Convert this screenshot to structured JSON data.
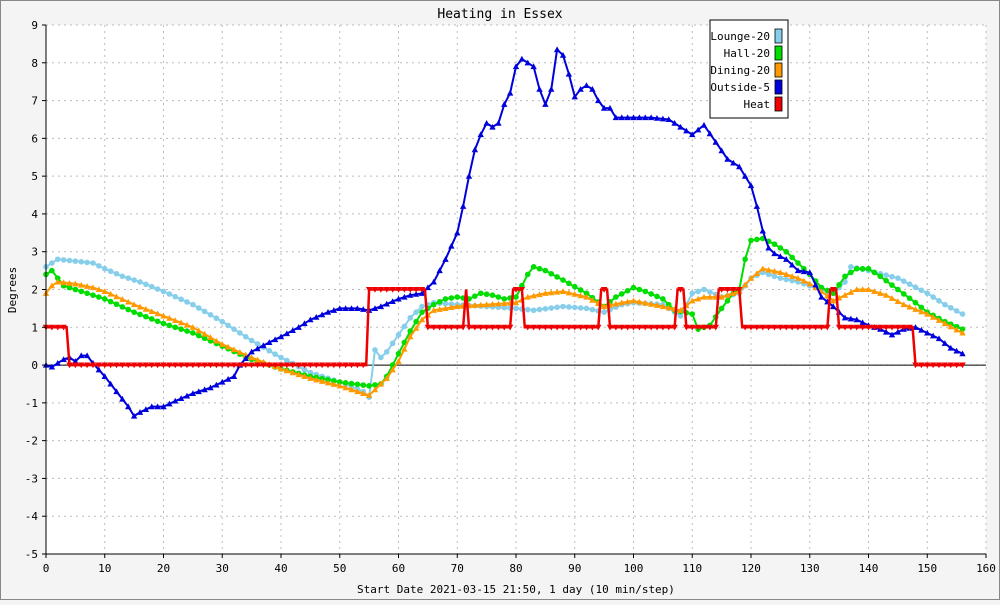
{
  "chart_data": {
    "type": "line",
    "title": "Heating in Essex",
    "xlabel": "Start Date 2021-03-15 21:50, 1 day (10 min/step)",
    "ylabel": "Degrees",
    "xlim": [
      0,
      160
    ],
    "ylim": [
      -5,
      9
    ],
    "x_ticks": [
      0,
      10,
      20,
      30,
      40,
      50,
      60,
      70,
      80,
      90,
      100,
      110,
      120,
      130,
      140,
      150,
      160
    ],
    "y_ticks": [
      -5,
      -4,
      -3,
      -2,
      -1,
      0,
      1,
      2,
      3,
      4,
      5,
      6,
      7,
      8,
      9
    ],
    "grid": true,
    "legend_position": "top-right",
    "series": [
      {
        "name": "Lounge-20",
        "color": "#87ceeb",
        "marker": "circle",
        "points": [
          [
            0,
            2.6
          ],
          [
            2,
            2.8
          ],
          [
            5,
            2.75
          ],
          [
            8,
            2.7
          ],
          [
            10,
            2.55
          ],
          [
            13,
            2.35
          ],
          [
            16,
            2.2
          ],
          [
            20,
            1.95
          ],
          [
            25,
            1.6
          ],
          [
            30,
            1.15
          ],
          [
            35,
            0.65
          ],
          [
            40,
            0.2
          ],
          [
            45,
            -0.2
          ],
          [
            50,
            -0.45
          ],
          [
            54,
            -0.7
          ],
          [
            55,
            -0.85
          ],
          [
            56,
            0.4
          ],
          [
            57,
            0.2
          ],
          [
            58,
            0.35
          ],
          [
            60,
            0.8
          ],
          [
            62,
            1.25
          ],
          [
            64,
            1.55
          ],
          [
            66,
            1.65
          ],
          [
            70,
            1.6
          ],
          [
            75,
            1.55
          ],
          [
            80,
            1.5
          ],
          [
            83,
            1.45
          ],
          [
            88,
            1.55
          ],
          [
            92,
            1.5
          ],
          [
            95,
            1.4
          ],
          [
            98,
            1.6
          ],
          [
            100,
            1.65
          ],
          [
            105,
            1.6
          ],
          [
            108,
            1.3
          ],
          [
            110,
            1.9
          ],
          [
            112,
            2.0
          ],
          [
            115,
            1.8
          ],
          [
            118,
            1.9
          ],
          [
            120,
            2.3
          ],
          [
            122,
            2.45
          ],
          [
            125,
            2.3
          ],
          [
            128,
            2.2
          ],
          [
            132,
            2.0
          ],
          [
            134,
            1.9
          ],
          [
            136,
            2.2
          ],
          [
            137,
            2.6
          ],
          [
            140,
            2.5
          ],
          [
            145,
            2.3
          ],
          [
            150,
            1.9
          ],
          [
            153,
            1.6
          ],
          [
            156,
            1.35
          ]
        ]
      },
      {
        "name": "Hall-20",
        "color": "#00dd00",
        "marker": "circle",
        "points": [
          [
            0,
            2.4
          ],
          [
            1,
            2.5
          ],
          [
            3,
            2.1
          ],
          [
            6,
            1.95
          ],
          [
            10,
            1.75
          ],
          [
            15,
            1.4
          ],
          [
            20,
            1.1
          ],
          [
            25,
            0.85
          ],
          [
            30,
            0.5
          ],
          [
            35,
            0.15
          ],
          [
            40,
            -0.1
          ],
          [
            45,
            -0.3
          ],
          [
            50,
            -0.45
          ],
          [
            55,
            -0.55
          ],
          [
            57,
            -0.5
          ],
          [
            58,
            -0.3
          ],
          [
            60,
            0.3
          ],
          [
            62,
            0.9
          ],
          [
            64,
            1.4
          ],
          [
            66,
            1.6
          ],
          [
            68,
            1.75
          ],
          [
            70,
            1.8
          ],
          [
            72,
            1.75
          ],
          [
            74,
            1.9
          ],
          [
            76,
            1.85
          ],
          [
            78,
            1.75
          ],
          [
            80,
            1.8
          ],
          [
            82,
            2.4
          ],
          [
            83,
            2.6
          ],
          [
            85,
            2.5
          ],
          [
            88,
            2.25
          ],
          [
            92,
            1.9
          ],
          [
            95,
            1.55
          ],
          [
            97,
            1.8
          ],
          [
            100,
            2.05
          ],
          [
            102,
            1.95
          ],
          [
            105,
            1.75
          ],
          [
            107,
            1.45
          ],
          [
            110,
            1.35
          ],
          [
            111,
            0.95
          ],
          [
            113,
            1.05
          ],
          [
            115,
            1.5
          ],
          [
            117,
            1.9
          ],
          [
            118,
            2.0
          ],
          [
            119,
            2.8
          ],
          [
            120,
            3.3
          ],
          [
            122,
            3.35
          ],
          [
            124,
            3.2
          ],
          [
            126,
            3.0
          ],
          [
            128,
            2.7
          ],
          [
            130,
            2.4
          ],
          [
            132,
            2.05
          ],
          [
            134,
            1.9
          ],
          [
            136,
            2.35
          ],
          [
            138,
            2.55
          ],
          [
            140,
            2.55
          ],
          [
            142,
            2.35
          ],
          [
            145,
            2.0
          ],
          [
            148,
            1.65
          ],
          [
            150,
            1.4
          ],
          [
            153,
            1.15
          ],
          [
            156,
            0.95
          ]
        ]
      },
      {
        "name": "Dining-20",
        "color": "#ff9900",
        "marker": "triangle",
        "points": [
          [
            0,
            1.9
          ],
          [
            1,
            2.1
          ],
          [
            2,
            2.2
          ],
          [
            5,
            2.15
          ],
          [
            8,
            2.05
          ],
          [
            10,
            1.95
          ],
          [
            15,
            1.6
          ],
          [
            20,
            1.3
          ],
          [
            25,
            1.0
          ],
          [
            30,
            0.55
          ],
          [
            35,
            0.2
          ],
          [
            40,
            -0.1
          ],
          [
            45,
            -0.35
          ],
          [
            50,
            -0.55
          ],
          [
            54,
            -0.75
          ],
          [
            55,
            -0.8
          ],
          [
            56,
            -0.65
          ],
          [
            58,
            -0.35
          ],
          [
            60,
            0.1
          ],
          [
            62,
            0.75
          ],
          [
            64,
            1.2
          ],
          [
            66,
            1.45
          ],
          [
            68,
            1.5
          ],
          [
            70,
            1.55
          ],
          [
            75,
            1.6
          ],
          [
            80,
            1.65
          ],
          [
            82,
            1.8
          ],
          [
            85,
            1.9
          ],
          [
            88,
            1.95
          ],
          [
            92,
            1.8
          ],
          [
            95,
            1.55
          ],
          [
            98,
            1.65
          ],
          [
            100,
            1.7
          ],
          [
            105,
            1.55
          ],
          [
            108,
            1.45
          ],
          [
            110,
            1.7
          ],
          [
            112,
            1.8
          ],
          [
            115,
            1.8
          ],
          [
            118,
            1.95
          ],
          [
            120,
            2.3
          ],
          [
            122,
            2.55
          ],
          [
            125,
            2.45
          ],
          [
            128,
            2.3
          ],
          [
            130,
            2.15
          ],
          [
            132,
            1.95
          ],
          [
            134,
            1.7
          ],
          [
            136,
            1.85
          ],
          [
            138,
            2.0
          ],
          [
            140,
            2.0
          ],
          [
            143,
            1.85
          ],
          [
            146,
            1.6
          ],
          [
            150,
            1.35
          ],
          [
            153,
            1.1
          ],
          [
            156,
            0.85
          ]
        ]
      },
      {
        "name": "Outside-5",
        "color": "#0000dd",
        "marker": "triangle",
        "points": [
          [
            0,
            0.0
          ],
          [
            1,
            -0.05
          ],
          [
            2,
            0.05
          ],
          [
            3,
            0.15
          ],
          [
            4,
            0.2
          ],
          [
            5,
            0.1
          ],
          [
            6,
            0.25
          ],
          [
            7,
            0.25
          ],
          [
            8,
            0.05
          ],
          [
            10,
            -0.3
          ],
          [
            12,
            -0.7
          ],
          [
            14,
            -1.1
          ],
          [
            15,
            -1.35
          ],
          [
            16,
            -1.25
          ],
          [
            18,
            -1.1
          ],
          [
            20,
            -1.1
          ],
          [
            22,
            -0.95
          ],
          [
            25,
            -0.75
          ],
          [
            28,
            -0.6
          ],
          [
            30,
            -0.45
          ],
          [
            32,
            -0.3
          ],
          [
            33,
            0.0
          ],
          [
            35,
            0.35
          ],
          [
            38,
            0.6
          ],
          [
            40,
            0.75
          ],
          [
            43,
            1.0
          ],
          [
            45,
            1.2
          ],
          [
            48,
            1.4
          ],
          [
            50,
            1.5
          ],
          [
            53,
            1.5
          ],
          [
            55,
            1.45
          ],
          [
            57,
            1.55
          ],
          [
            60,
            1.75
          ],
          [
            62,
            1.85
          ],
          [
            64,
            1.9
          ],
          [
            66,
            2.2
          ],
          [
            68,
            2.8
          ],
          [
            70,
            3.5
          ],
          [
            71,
            4.2
          ],
          [
            72,
            5.0
          ],
          [
            73,
            5.7
          ],
          [
            74,
            6.1
          ],
          [
            75,
            6.4
          ],
          [
            76,
            6.3
          ],
          [
            77,
            6.4
          ],
          [
            78,
            6.9
          ],
          [
            79,
            7.2
          ],
          [
            80,
            7.9
          ],
          [
            81,
            8.1
          ],
          [
            82,
            8.0
          ],
          [
            83,
            7.9
          ],
          [
            84,
            7.3
          ],
          [
            85,
            6.9
          ],
          [
            86,
            7.3
          ],
          [
            87,
            8.35
          ],
          [
            88,
            8.2
          ],
          [
            89,
            7.7
          ],
          [
            90,
            7.1
          ],
          [
            91,
            7.3
          ],
          [
            92,
            7.4
          ],
          [
            93,
            7.3
          ],
          [
            94,
            7.0
          ],
          [
            95,
            6.8
          ],
          [
            96,
            6.8
          ],
          [
            97,
            6.55
          ],
          [
            100,
            6.55
          ],
          [
            103,
            6.55
          ],
          [
            106,
            6.5
          ],
          [
            108,
            6.3
          ],
          [
            110,
            6.1
          ],
          [
            112,
            6.35
          ],
          [
            114,
            5.9
          ],
          [
            116,
            5.45
          ],
          [
            118,
            5.25
          ],
          [
            120,
            4.75
          ],
          [
            121,
            4.2
          ],
          [
            122,
            3.55
          ],
          [
            123,
            3.1
          ],
          [
            124,
            2.95
          ],
          [
            126,
            2.8
          ],
          [
            128,
            2.5
          ],
          [
            130,
            2.45
          ],
          [
            132,
            1.8
          ],
          [
            134,
            1.55
          ],
          [
            136,
            1.25
          ],
          [
            138,
            1.2
          ],
          [
            140,
            1.05
          ],
          [
            142,
            0.95
          ],
          [
            144,
            0.8
          ],
          [
            146,
            0.95
          ],
          [
            148,
            1.0
          ],
          [
            150,
            0.85
          ],
          [
            152,
            0.7
          ],
          [
            154,
            0.45
          ],
          [
            156,
            0.3
          ]
        ]
      },
      {
        "name": "Heat",
        "color": "#ee0000",
        "marker": "triangle-down",
        "points": [
          [
            0,
            1
          ],
          [
            3.5,
            1
          ],
          [
            4,
            0
          ],
          [
            54.5,
            0
          ],
          [
            55,
            2
          ],
          [
            64.5,
            2
          ],
          [
            65,
            1
          ],
          [
            71,
            1
          ],
          [
            71.5,
            2
          ],
          [
            72,
            1
          ],
          [
            79,
            1
          ],
          [
            79.5,
            2
          ],
          [
            81,
            2
          ],
          [
            81.5,
            1
          ],
          [
            94,
            1
          ],
          [
            94.5,
            2
          ],
          [
            95.5,
            2
          ],
          [
            96,
            1
          ],
          [
            107,
            1
          ],
          [
            107.5,
            2
          ],
          [
            108.5,
            2
          ],
          [
            109,
            1
          ],
          [
            114,
            1
          ],
          [
            114.5,
            2
          ],
          [
            118,
            2
          ],
          [
            118.5,
            1
          ],
          [
            133,
            1
          ],
          [
            133.5,
            2
          ],
          [
            134.5,
            2
          ],
          [
            135,
            1
          ],
          [
            147.5,
            1
          ],
          [
            148,
            0
          ],
          [
            156,
            0
          ]
        ]
      }
    ]
  }
}
